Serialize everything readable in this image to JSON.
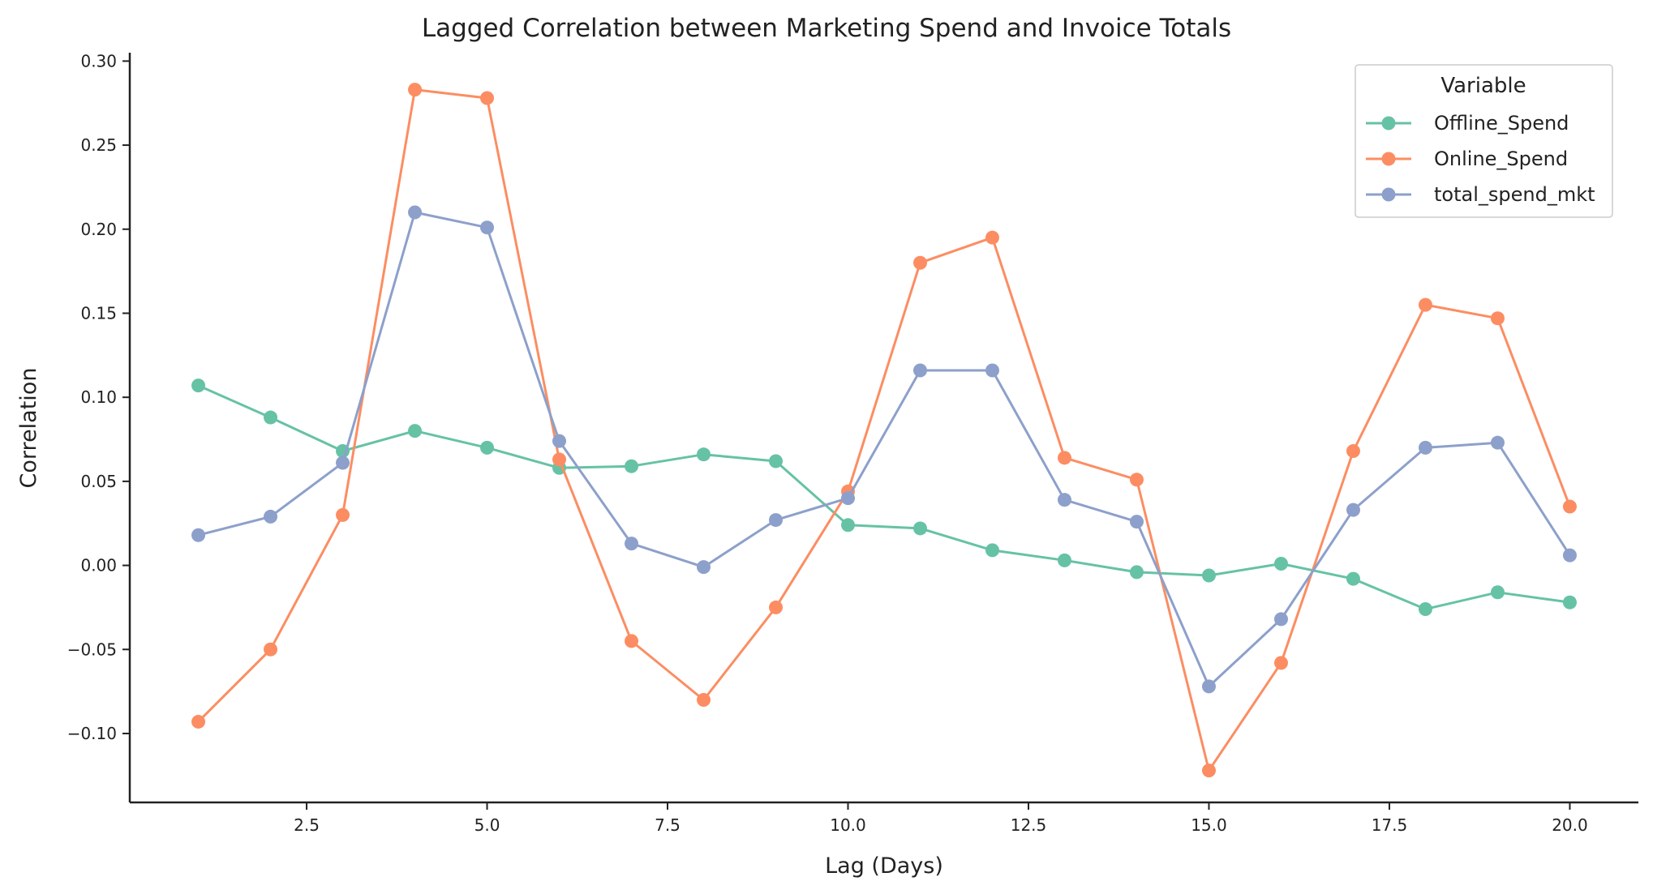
{
  "chart_data": {
    "type": "line",
    "title": "Lagged Correlation between Marketing Spend and Invoice Totals",
    "xlabel": "Lag (Days)",
    "ylabel": "Correlation",
    "xlim": [
      0.05,
      20.95
    ],
    "ylim": [
      -0.141,
      0.305
    ],
    "x_ticks": [
      2.5,
      5.0,
      7.5,
      10.0,
      12.5,
      15.0,
      17.5,
      20.0
    ],
    "x_tick_labels": [
      "2.5",
      "5.0",
      "7.5",
      "10.0",
      "12.5",
      "15.0",
      "17.5",
      "20.0"
    ],
    "y_ticks": [
      -0.1,
      -0.05,
      0.0,
      0.05,
      0.1,
      0.15,
      0.2,
      0.25,
      0.3
    ],
    "y_tick_labels": [
      "−0.10",
      "−0.05",
      "0.00",
      "0.05",
      "0.10",
      "0.15",
      "0.20",
      "0.25",
      "0.30"
    ],
    "grid": false,
    "legend": {
      "title": "Variable",
      "placement": "top-right"
    },
    "x": [
      1,
      2,
      3,
      4,
      5,
      6,
      7,
      8,
      9,
      10,
      11,
      12,
      13,
      14,
      15,
      16,
      17,
      18,
      19,
      20
    ],
    "series": [
      {
        "name": "Offline_Spend",
        "color": "#66c2a5",
        "values": [
          0.107,
          0.088,
          0.068,
          0.08,
          0.07,
          0.058,
          0.059,
          0.066,
          0.062,
          0.024,
          0.022,
          0.009,
          0.003,
          -0.004,
          -0.006,
          0.001,
          -0.008,
          -0.026,
          -0.016,
          -0.022
        ]
      },
      {
        "name": "Online_Spend",
        "color": "#fc8d62",
        "values": [
          -0.093,
          -0.05,
          0.03,
          0.283,
          0.278,
          0.063,
          -0.045,
          -0.08,
          -0.025,
          0.044,
          0.18,
          0.195,
          0.064,
          0.051,
          -0.122,
          -0.058,
          0.068,
          0.155,
          0.147,
          0.035
        ]
      },
      {
        "name": "total_spend_mkt",
        "color": "#8da0cb",
        "values": [
          0.018,
          0.029,
          0.061,
          0.21,
          0.201,
          0.074,
          0.013,
          -0.001,
          0.027,
          0.04,
          0.116,
          0.116,
          0.039,
          0.026,
          -0.072,
          -0.032,
          0.033,
          0.07,
          0.073,
          0.006
        ]
      }
    ]
  }
}
